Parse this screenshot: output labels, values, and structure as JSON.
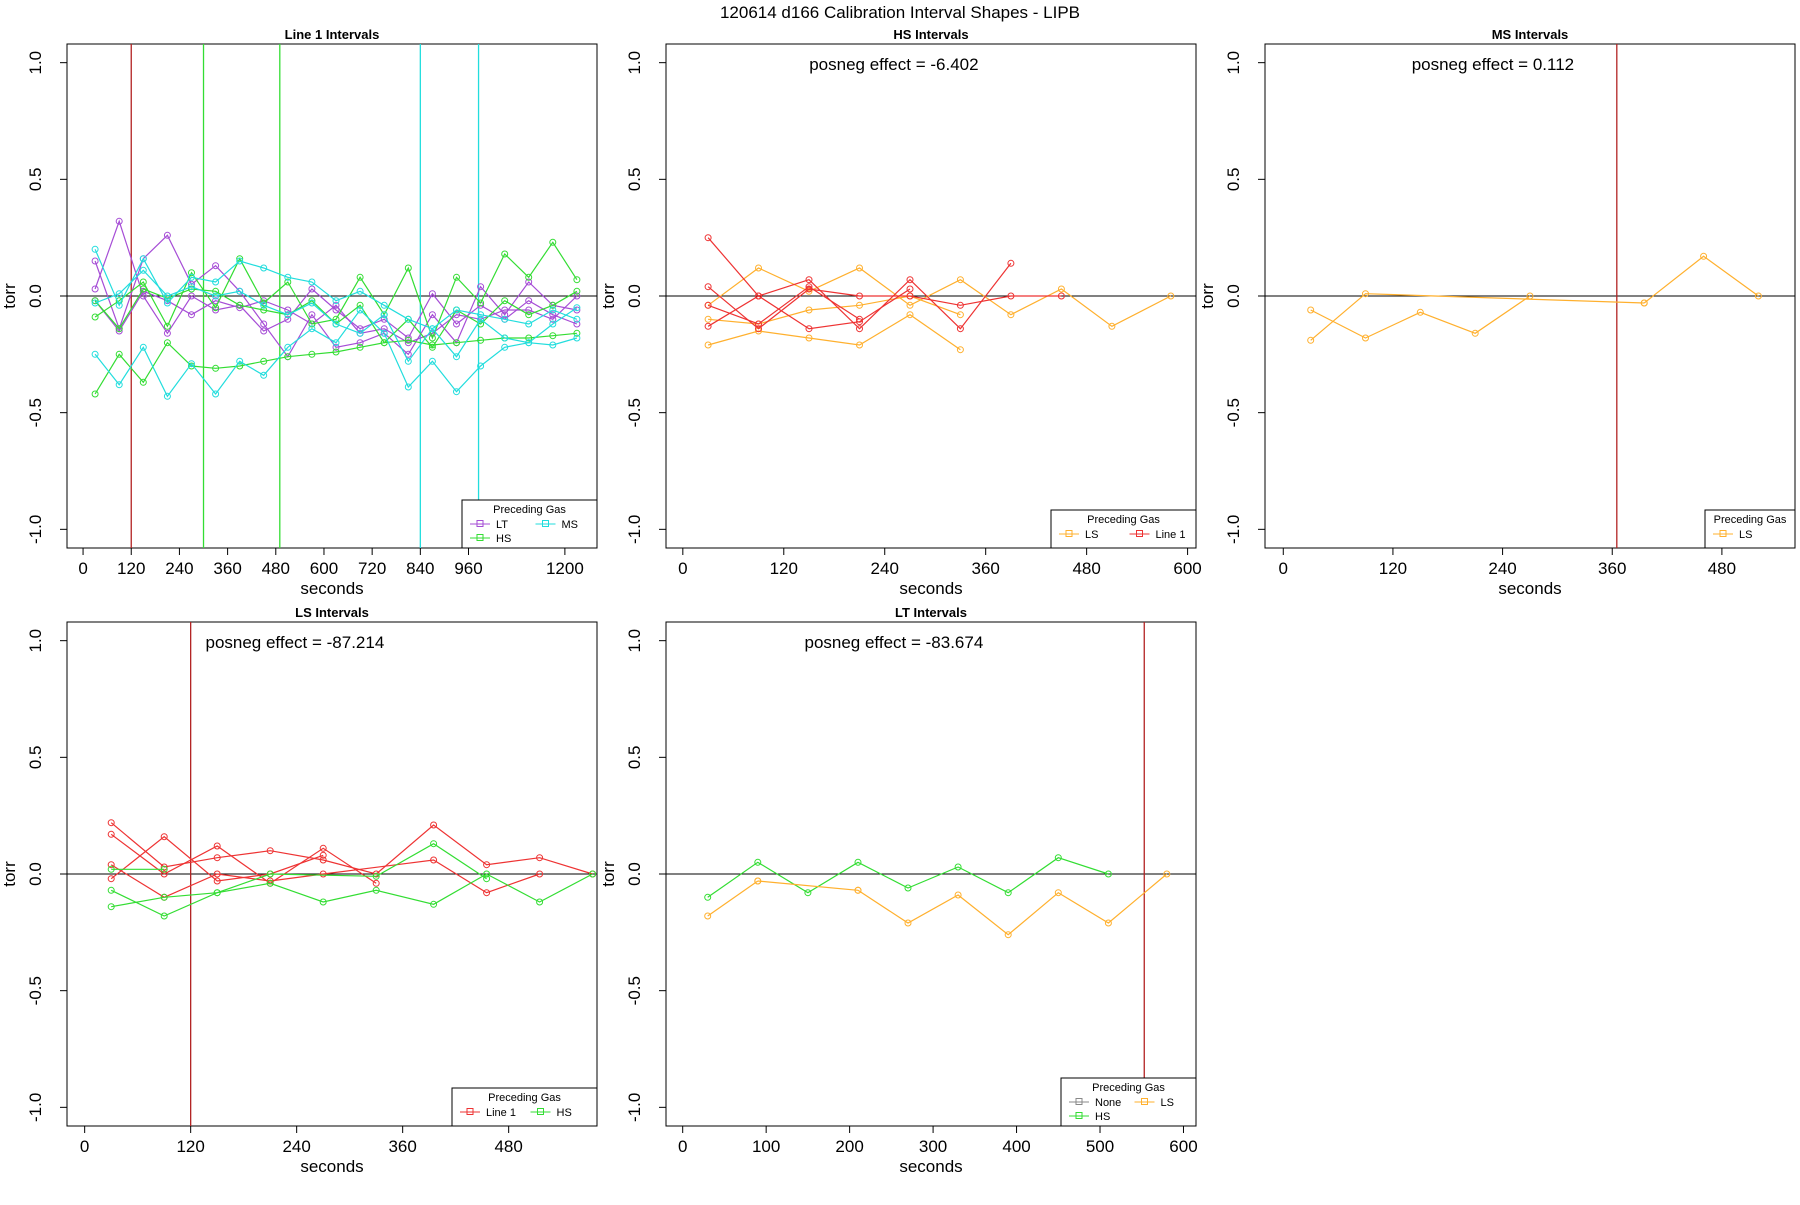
{
  "page_title": "120614   d166   Calibration Interval Shapes - LIPB",
  "chart_data": [
    {
      "type": "line",
      "title": "Line 1 Intervals",
      "xlabel": "seconds",
      "ylabel": "torr",
      "xlim": [
        -40,
        1280
      ],
      "ylim": [
        -1.08,
        1.08
      ],
      "x_ticks": [
        0,
        120,
        240,
        360,
        480,
        600,
        720,
        840,
        960,
        1200
      ],
      "y_ticks": [
        -1.0,
        -0.5,
        0.0,
        0.5,
        1.0
      ],
      "y_tick_labels": [
        "-1.0",
        "-0.5",
        "0.0",
        "0.5",
        "1.0"
      ],
      "annotation": "",
      "legend": {
        "title": "Preceding Gas",
        "entries": [
          "LT",
          "HS",
          "MS"
        ],
        "position": "bottom-right"
      },
      "vlines": [
        {
          "x": 120,
          "color": "#b22222"
        },
        {
          "x": 300,
          "color": "#33dd33"
        },
        {
          "x": 490,
          "color": "#33dd33"
        },
        {
          "x": 840,
          "color": "#22dddd"
        },
        {
          "x": 985,
          "color": "#22dddd"
        }
      ],
      "series": [
        {
          "name": "LT",
          "color": "#a64dd6",
          "x": [
            30,
            90,
            150,
            210,
            270,
            330,
            390,
            450,
            510,
            570,
            630,
            690,
            750,
            810,
            870,
            930,
            990,
            1050,
            1110,
            1170,
            1230
          ],
          "y": [
            0.15,
            -0.14,
            0.16,
            0.26,
            0.05,
            0.13,
            0.02,
            -0.12,
            -0.26,
            -0.08,
            -0.22,
            -0.2,
            -0.16,
            -0.25,
            -0.08,
            -0.2,
            0.04,
            -0.08,
            0.06,
            -0.04,
            -0.06
          ]
        },
        {
          "name": "LT",
          "color": "#a64dd6",
          "x": [
            30,
            90,
            150,
            210,
            270,
            330,
            390,
            450,
            510,
            570,
            630,
            690,
            750,
            810,
            870,
            930,
            990,
            1050,
            1110,
            1170,
            1230
          ],
          "y": [
            0.03,
            0.32,
            0.0,
            -0.16,
            0.0,
            -0.06,
            -0.04,
            -0.15,
            -0.1,
            0.03,
            -0.06,
            -0.14,
            -0.1,
            -0.18,
            0.01,
            -0.12,
            -0.04,
            -0.1,
            -0.02,
            -0.08,
            -0.12
          ]
        },
        {
          "name": "LT",
          "color": "#a64dd6",
          "x": [
            30,
            90,
            150,
            210,
            270,
            330,
            390,
            450,
            510,
            570,
            630,
            690,
            750,
            810,
            870,
            930,
            990,
            1050,
            1110,
            1170,
            1230
          ],
          "y": [
            -0.02,
            -0.15,
            0.02,
            -0.02,
            -0.08,
            -0.02,
            -0.05,
            -0.02,
            -0.06,
            -0.12,
            -0.04,
            -0.16,
            -0.14,
            -0.2,
            -0.16,
            -0.08,
            -0.1,
            -0.06,
            -0.06,
            -0.1,
            0.0
          ]
        },
        {
          "name": "HS",
          "color": "#33dd33",
          "x": [
            30,
            90,
            150,
            210,
            270,
            330,
            390,
            450,
            510,
            570,
            630,
            690,
            750,
            810,
            870,
            930,
            990,
            1050,
            1110,
            1170,
            1230
          ],
          "y": [
            -0.42,
            -0.25,
            -0.37,
            -0.2,
            -0.3,
            -0.31,
            -0.3,
            -0.28,
            -0.26,
            -0.25,
            -0.24,
            -0.22,
            -0.2,
            -0.19,
            -0.21,
            -0.2,
            -0.19,
            -0.18,
            -0.18,
            -0.17,
            -0.16
          ]
        },
        {
          "name": "HS",
          "color": "#33dd33",
          "x": [
            30,
            90,
            150,
            210,
            270,
            330,
            390,
            450,
            510,
            570,
            630,
            690,
            750,
            810,
            870,
            930,
            990,
            1050,
            1110,
            1170,
            1230
          ],
          "y": [
            -0.09,
            -0.02,
            0.06,
            -0.13,
            0.1,
            -0.05,
            0.16,
            -0.03,
            0.06,
            -0.12,
            -0.1,
            0.08,
            -0.08,
            0.12,
            -0.18,
            0.08,
            -0.03,
            0.18,
            0.08,
            0.23,
            0.07
          ]
        },
        {
          "name": "HS",
          "color": "#33dd33",
          "x": [
            30,
            90,
            150,
            210,
            270,
            330,
            390,
            450,
            510,
            570,
            630,
            690,
            750,
            810,
            870,
            930,
            990,
            1050,
            1110,
            1170,
            1230
          ],
          "y": [
            -0.02,
            -0.14,
            0.03,
            -0.01,
            0.03,
            0.02,
            -0.04,
            -0.06,
            -0.08,
            -0.02,
            -0.12,
            -0.04,
            -0.2,
            -0.1,
            -0.22,
            -0.06,
            -0.12,
            -0.02,
            -0.08,
            -0.04,
            0.02
          ]
        },
        {
          "name": "MS",
          "color": "#22dddd",
          "x": [
            30,
            90,
            150,
            210,
            270,
            330,
            390,
            450,
            510,
            570,
            630,
            690,
            750,
            810,
            870,
            930,
            990,
            1050,
            1110,
            1170,
            1230
          ],
          "y": [
            0.2,
            -0.04,
            0.16,
            -0.03,
            0.08,
            0.06,
            0.15,
            0.12,
            0.08,
            0.06,
            -0.02,
            0.02,
            -0.04,
            -0.1,
            -0.14,
            -0.06,
            -0.08,
            -0.1,
            -0.12,
            -0.06,
            -0.1
          ]
        },
        {
          "name": "MS",
          "color": "#22dddd",
          "x": [
            30,
            90,
            150,
            210,
            270,
            330,
            390,
            450,
            510,
            570,
            630,
            690,
            750,
            810,
            870,
            930,
            990,
            1050,
            1110,
            1170,
            1230
          ],
          "y": [
            -0.25,
            -0.38,
            -0.22,
            -0.43,
            -0.29,
            -0.42,
            -0.28,
            -0.34,
            -0.22,
            -0.14,
            -0.2,
            -0.06,
            -0.16,
            -0.39,
            -0.28,
            -0.41,
            -0.3,
            -0.22,
            -0.2,
            -0.21,
            -0.18
          ]
        },
        {
          "name": "MS",
          "color": "#22dddd",
          "x": [
            30,
            90,
            150,
            210,
            270,
            330,
            390,
            450,
            510,
            570,
            630,
            690,
            750,
            810,
            870,
            930,
            990,
            1050,
            1110,
            1170,
            1230
          ],
          "y": [
            -0.03,
            0.01,
            0.11,
            0.0,
            0.04,
            0.0,
            0.02,
            -0.04,
            -0.08,
            -0.03,
            -0.12,
            -0.16,
            -0.08,
            -0.28,
            -0.14,
            -0.26,
            -0.1,
            -0.18,
            -0.2,
            -0.12,
            -0.05
          ]
        }
      ]
    },
    {
      "type": "line",
      "title": "HS Intervals",
      "xlabel": "seconds",
      "ylabel": "torr",
      "xlim": [
        -20,
        610
      ],
      "ylim": [
        -1.08,
        1.08
      ],
      "x_ticks": [
        0,
        120,
        240,
        360,
        480,
        600
      ],
      "y_ticks": [
        -1.0,
        -0.5,
        0.0,
        0.5,
        1.0
      ],
      "y_tick_labels": [
        "-1.0",
        "-0.5",
        "0.0",
        "0.5",
        "1.0"
      ],
      "annotation": "posneg effect = -6.402",
      "legend": {
        "title": "Preceding Gas",
        "entries": [
          "LS",
          "Line 1"
        ],
        "position": "bottom-right"
      },
      "vlines": [],
      "series": [
        {
          "name": "LS",
          "color": "#ffb02e",
          "x": [
            30,
            90,
            150,
            210,
            270,
            330,
            390,
            450,
            510,
            580
          ],
          "y": [
            -0.04,
            0.12,
            0.02,
            0.12,
            -0.04,
            0.07,
            -0.08,
            0.03,
            -0.13,
            0.0
          ]
        },
        {
          "name": "LS",
          "color": "#ffb02e",
          "x": [
            30,
            90,
            150,
            210,
            270,
            330
          ],
          "y": [
            -0.21,
            -0.15,
            -0.18,
            -0.21,
            -0.08,
            -0.23
          ]
        },
        {
          "name": "LS",
          "color": "#ffb02e",
          "x": [
            30,
            90,
            150,
            210,
            270,
            330
          ],
          "y": [
            -0.1,
            -0.12,
            -0.06,
            -0.04,
            0.0,
            -0.08
          ]
        },
        {
          "name": "Line 1",
          "color": "#ee3333",
          "x": [
            30,
            90,
            150,
            210,
            270,
            330,
            390
          ],
          "y": [
            0.25,
            0.0,
            0.07,
            -0.14,
            0.07,
            -0.14,
            0.14
          ]
        },
        {
          "name": "Line 1",
          "color": "#ee3333",
          "x": [
            30,
            90,
            150,
            210,
            270,
            330,
            390,
            450
          ],
          "y": [
            0.04,
            -0.14,
            0.03,
            0.0,
            0.0,
            -0.04,
            0.0,
            0.0
          ]
        },
        {
          "name": "Line 1",
          "color": "#ee3333",
          "x": [
            30,
            90,
            150,
            210,
            270
          ],
          "y": [
            -0.13,
            0.0,
            -0.14,
            -0.11,
            0.03
          ]
        },
        {
          "name": "Line 1",
          "color": "#ee3333",
          "x": [
            30,
            90,
            150,
            210
          ],
          "y": [
            -0.04,
            -0.12,
            0.04,
            -0.1
          ]
        }
      ]
    },
    {
      "type": "line",
      "title": "MS Intervals",
      "xlabel": "seconds",
      "ylabel": "torr",
      "xlim": [
        -20,
        560
      ],
      "ylim": [
        -1.08,
        1.08
      ],
      "x_ticks": [
        0,
        120,
        240,
        360,
        480
      ],
      "y_ticks": [
        -1.0,
        -0.5,
        0.0,
        0.5,
        1.0
      ],
      "y_tick_labels": [
        "-1.0",
        "-0.5",
        "0.0",
        "0.5",
        "1.0"
      ],
      "annotation": "posneg effect = 0.112",
      "legend": {
        "title": "Preceding Gas",
        "entries": [
          "LS"
        ],
        "position": "bottom-right"
      },
      "vlines": [
        {
          "x": 365,
          "color": "#b22222"
        }
      ],
      "series": [
        {
          "name": "LS",
          "color": "#ffb02e",
          "x": [
            30,
            90,
            150,
            210,
            270,
            330,
            395,
            460,
            520
          ],
          "y": [
            -0.06,
            -0.18,
            -0.07,
            -0.16,
            0.0,
            null,
            -0.03,
            0.17,
            0.0
          ]
        },
        {
          "name": "LS",
          "color": "#ffb02e",
          "x": [
            30,
            90,
            395
          ],
          "y": [
            -0.19,
            0.01,
            -0.03
          ]
        }
      ]
    },
    {
      "type": "line",
      "title": "LS Intervals",
      "xlabel": "seconds",
      "ylabel": "torr",
      "xlim": [
        -20,
        580
      ],
      "ylim": [
        -1.08,
        1.08
      ],
      "x_ticks": [
        0,
        120,
        240,
        360,
        480
      ],
      "y_ticks": [
        -1.0,
        -0.5,
        0.0,
        0.5,
        1.0
      ],
      "y_tick_labels": [
        "-1.0",
        "-0.5",
        "0.0",
        "0.5",
        "1.0"
      ],
      "annotation": "posneg effect = -87.214",
      "legend": {
        "title": "Preceding Gas",
        "entries": [
          "Line 1",
          "HS"
        ],
        "position": "bottom-right"
      },
      "vlines": [
        {
          "x": 120,
          "color": "#b22222"
        }
      ],
      "series": [
        {
          "name": "Line 1",
          "color": "#ee3333",
          "x": [
            30,
            90,
            150,
            210,
            270,
            330,
            395,
            455,
            515,
            575
          ],
          "y": [
            0.22,
            0.03,
            0.07,
            0.1,
            0.06,
            0.0,
            0.21,
            0.04,
            0.07,
            0.0
          ]
        },
        {
          "name": "Line 1",
          "color": "#ee3333",
          "x": [
            30,
            90,
            150,
            210,
            270,
            330
          ],
          "y": [
            0.17,
            0.0,
            0.12,
            -0.04,
            0.11,
            -0.04
          ]
        },
        {
          "name": "Line 1",
          "color": "#ee3333",
          "x": [
            30,
            90,
            150,
            210,
            270
          ],
          "y": [
            -0.02,
            0.16,
            -0.03,
            0.0,
            0.08
          ]
        },
        {
          "name": "Line 1",
          "color": "#ee3333",
          "x": [
            30,
            90,
            150,
            210,
            270,
            395,
            455,
            515
          ],
          "y": [
            0.04,
            -0.1,
            0.0,
            -0.03,
            0.0,
            0.06,
            -0.08,
            0.0
          ]
        },
        {
          "name": "HS",
          "color": "#33dd33",
          "x": [
            30,
            90,
            150,
            210,
            270,
            330,
            395,
            455,
            515,
            575
          ],
          "y": [
            -0.07,
            -0.18,
            -0.08,
            -0.04,
            -0.12,
            -0.07,
            -0.13,
            0.0,
            -0.12,
            0.0
          ]
        },
        {
          "name": "HS",
          "color": "#33dd33",
          "x": [
            30,
            90,
            150,
            210,
            330,
            395,
            455
          ],
          "y": [
            -0.14,
            -0.1,
            -0.08,
            0.0,
            -0.01,
            0.13,
            -0.02
          ]
        },
        {
          "name": "HS",
          "color": "#33dd33",
          "x": [
            30,
            90
          ],
          "y": [
            0.02,
            0.02
          ]
        }
      ]
    },
    {
      "type": "line",
      "title": "LT Intervals",
      "xlabel": "seconds",
      "ylabel": "torr",
      "xlim": [
        -20,
        615
      ],
      "ylim": [
        -1.08,
        1.08
      ],
      "x_ticks": [
        0,
        100,
        200,
        300,
        400,
        500,
        600
      ],
      "y_ticks": [
        -1.0,
        -0.5,
        0.0,
        0.5,
        1.0
      ],
      "y_tick_labels": [
        "-1.0",
        "-0.5",
        "0.0",
        "0.5",
        "1.0"
      ],
      "annotation": "posneg effect = -83.674",
      "legend": {
        "title": "Preceding Gas",
        "entries": [
          "None",
          "HS",
          "LS"
        ],
        "position": "bottom-right"
      },
      "vlines": [
        {
          "x": 553,
          "color": "#b22222"
        }
      ],
      "series": [
        {
          "name": "HS",
          "color": "#33dd33",
          "x": [
            30,
            90,
            150,
            210,
            270,
            330,
            390,
            450,
            510
          ],
          "y": [
            -0.1,
            0.05,
            -0.08,
            0.05,
            -0.06,
            0.03,
            -0.08,
            0.07,
            0.0
          ]
        },
        {
          "name": "LS",
          "color": "#ffb02e",
          "x": [
            30,
            90,
            150,
            210,
            270,
            330,
            390,
            450,
            510,
            580
          ],
          "y": [
            -0.18,
            -0.03,
            null,
            -0.07,
            -0.21,
            -0.09,
            -0.26,
            -0.08,
            -0.21,
            0.0
          ]
        },
        {
          "name": "LS",
          "color": "#ffb02e",
          "x": [
            90,
            210
          ],
          "y": [
            -0.03,
            -0.07
          ]
        }
      ]
    }
  ],
  "colors": {
    "axis": "#000000",
    "frame": "#000000",
    "none": "#888888"
  }
}
